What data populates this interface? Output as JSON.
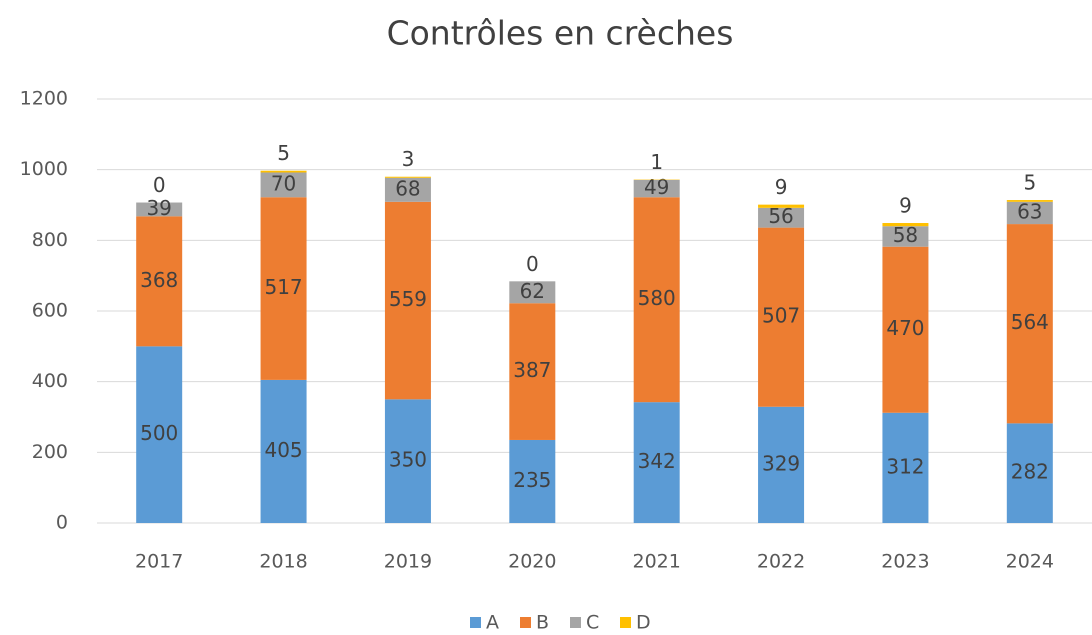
{
  "chart_data": {
    "type": "stacked_bar",
    "title": "Contrôles en crèches",
    "categories": [
      "2017",
      "2018",
      "2019",
      "2020",
      "2021",
      "2022",
      "2023",
      "2024"
    ],
    "series": [
      {
        "name": "A",
        "color": "#5b9bd5",
        "values": [
          500,
          405,
          350,
          235,
          342,
          329,
          312,
          282
        ]
      },
      {
        "name": "B",
        "color": "#ed7d31",
        "values": [
          368,
          517,
          559,
          387,
          580,
          507,
          470,
          564
        ]
      },
      {
        "name": "C",
        "color": "#a5a5a5",
        "values": [
          39,
          70,
          68,
          62,
          49,
          56,
          58,
          63
        ]
      },
      {
        "name": "D",
        "color": "#ffc000",
        "values": [
          0,
          5,
          3,
          0,
          1,
          9,
          9,
          5
        ]
      }
    ],
    "ylim": [
      0,
      1200
    ],
    "yticks": [
      0,
      200,
      400,
      600,
      800,
      1000,
      1200
    ],
    "grid": true,
    "legend": "bottom"
  }
}
